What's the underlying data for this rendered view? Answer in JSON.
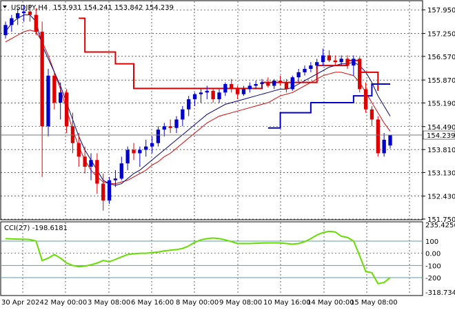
{
  "chart_data": {
    "type": "candlestick",
    "symbol_label": "USDJPY,H4",
    "ohlc_label": "153.931 154.241 153.842 154.239",
    "current_price_label": "154.239",
    "price_axis_ticks": [
      "157.950",
      "157.250",
      "156.570",
      "155.870",
      "155.190",
      "154.490",
      "153.810",
      "153.130",
      "152.430",
      "151.750"
    ],
    "price_range": [
      151.75,
      158.2
    ],
    "time_labels": [
      "30 Apr 2024",
      "2 May 00:00",
      "3 May 08:00",
      "6 May 16:00",
      "8 May 00:00",
      "9 May 08:00",
      "10 May 16:00",
      "14 May 00:00",
      "15 May 08:00"
    ],
    "colors": {
      "bull": "#0000cc",
      "bear": "#dd0000",
      "ma_fast": "#000080",
      "ma_slow": "#dd0000",
      "stop_line_red": "#dd0000",
      "stop_line_blue": "#0000cc",
      "cci": "#66dd00",
      "level_line": "#5f9ea0",
      "grid": "#000000"
    },
    "candles": [
      [
        157.2,
        157.6,
        157.1,
        157.5
      ],
      [
        157.5,
        157.8,
        157.3,
        157.7
      ],
      [
        157.7,
        158.0,
        157.5,
        157.85
      ],
      [
        157.85,
        158.1,
        157.6,
        157.9
      ],
      [
        157.9,
        158.1,
        157.6,
        157.8
      ],
      [
        157.8,
        158.0,
        157.2,
        157.3
      ],
      [
        157.3,
        157.6,
        153.0,
        154.5
      ],
      [
        154.5,
        156.2,
        154.2,
        156.0
      ],
      [
        156.0,
        156.1,
        155.0,
        155.2
      ],
      [
        155.2,
        155.8,
        154.7,
        155.5
      ],
      [
        155.5,
        155.6,
        154.3,
        154.5
      ],
      [
        154.5,
        154.9,
        153.7,
        154.0
      ],
      [
        154.0,
        154.3,
        153.3,
        153.6
      ],
      [
        153.6,
        153.9,
        153.1,
        153.3
      ],
      [
        153.3,
        153.7,
        152.9,
        153.5
      ],
      [
        153.5,
        153.7,
        152.5,
        152.8
      ],
      [
        152.8,
        153.1,
        152.0,
        152.3
      ],
      [
        152.3,
        153.0,
        152.2,
        152.9
      ],
      [
        152.9,
        153.2,
        152.7,
        152.95
      ],
      [
        152.95,
        153.6,
        152.9,
        153.4
      ],
      [
        153.4,
        153.9,
        153.2,
        153.8
      ],
      [
        153.8,
        154.0,
        153.5,
        153.7
      ],
      [
        153.7,
        153.9,
        153.3,
        153.8
      ],
      [
        153.8,
        154.1,
        153.6,
        153.9
      ],
      [
        153.9,
        154.2,
        153.7,
        154.0
      ],
      [
        154.0,
        154.5,
        153.9,
        154.4
      ],
      [
        154.4,
        154.6,
        154.2,
        154.5
      ],
      [
        154.5,
        154.7,
        154.3,
        154.45
      ],
      [
        154.45,
        154.8,
        154.3,
        154.7
      ],
      [
        154.7,
        155.1,
        154.5,
        155.0
      ],
      [
        155.0,
        155.4,
        154.8,
        155.3
      ],
      [
        155.3,
        155.5,
        155.1,
        155.45
      ],
      [
        155.45,
        155.6,
        155.2,
        155.5
      ],
      [
        155.5,
        155.7,
        155.3,
        155.55
      ],
      [
        155.55,
        155.6,
        155.2,
        155.3
      ],
      [
        155.3,
        155.6,
        155.2,
        155.5
      ],
      [
        155.5,
        155.8,
        155.4,
        155.75
      ],
      [
        155.75,
        155.9,
        155.5,
        155.6
      ],
      [
        155.6,
        155.7,
        155.3,
        155.45
      ],
      [
        155.45,
        155.7,
        155.4,
        155.6
      ],
      [
        155.6,
        155.8,
        155.5,
        155.7
      ],
      [
        155.7,
        155.85,
        155.6,
        155.75
      ],
      [
        155.75,
        155.9,
        155.6,
        155.8
      ],
      [
        155.8,
        155.95,
        155.65,
        155.7
      ],
      [
        155.7,
        155.9,
        155.6,
        155.85
      ],
      [
        155.85,
        156.0,
        155.7,
        155.8
      ],
      [
        155.8,
        155.9,
        155.5,
        155.6
      ],
      [
        155.6,
        156.0,
        155.55,
        155.95
      ],
      [
        155.95,
        156.2,
        155.8,
        156.1
      ],
      [
        156.1,
        156.3,
        156.0,
        156.2
      ],
      [
        156.2,
        156.4,
        156.1,
        156.3
      ],
      [
        156.3,
        156.5,
        156.2,
        156.4
      ],
      [
        156.4,
        156.8,
        156.3,
        156.6
      ],
      [
        156.6,
        156.75,
        156.4,
        156.45
      ],
      [
        156.45,
        156.6,
        156.3,
        156.4
      ],
      [
        156.4,
        156.6,
        156.3,
        156.5
      ],
      [
        156.5,
        156.6,
        156.2,
        156.3
      ],
      [
        156.3,
        156.6,
        156.0,
        156.5
      ],
      [
        156.5,
        156.55,
        155.5,
        155.6
      ],
      [
        155.6,
        155.8,
        154.9,
        155.0
      ],
      [
        155.0,
        155.1,
        154.5,
        154.7
      ],
      [
        154.7,
        154.8,
        153.6,
        153.7
      ],
      [
        153.7,
        154.3,
        153.6,
        154.1
      ],
      [
        153.93,
        154.24,
        153.84,
        154.24
      ]
    ],
    "ma_fast": [
      157.3,
      157.55,
      157.7,
      157.8,
      157.8,
      157.6,
      156.9,
      156.5,
      156.1,
      155.7,
      155.2,
      154.7,
      154.2,
      153.8,
      153.5,
      153.2,
      152.9,
      152.8,
      152.75,
      152.8,
      152.95,
      153.1,
      153.2,
      153.35,
      153.5,
      153.65,
      153.8,
      153.95,
      154.1,
      154.25,
      154.4,
      154.55,
      154.7,
      154.85,
      154.95,
      155.05,
      155.15,
      155.2,
      155.25,
      155.3,
      155.35,
      155.4,
      155.45,
      155.5,
      155.55,
      155.6,
      155.6,
      155.65,
      155.75,
      155.85,
      155.95,
      156.05,
      156.15,
      156.25,
      156.3,
      156.35,
      156.35,
      156.4,
      156.3,
      156.1,
      155.8,
      155.4,
      155.1,
      154.8
    ],
    "ma_slow": [
      157.0,
      157.1,
      157.2,
      157.3,
      157.35,
      157.3,
      157.0,
      156.6,
      156.1,
      155.6,
      155.0,
      154.4,
      153.9,
      153.5,
      153.2,
      153.0,
      152.85,
      152.8,
      152.8,
      152.85,
      152.9,
      153.0,
      153.1,
      153.2,
      153.35,
      153.45,
      153.6,
      153.7,
      153.85,
      154.0,
      154.15,
      154.3,
      154.45,
      154.6,
      154.7,
      154.8,
      154.85,
      154.9,
      154.95,
      155.0,
      155.05,
      155.1,
      155.15,
      155.2,
      155.3,
      155.4,
      155.45,
      155.5,
      155.6,
      155.7,
      155.8,
      155.9,
      156.0,
      156.05,
      156.1,
      156.1,
      156.05,
      156.0,
      155.8,
      155.5,
      155.2,
      154.9,
      154.6,
      154.35
    ],
    "stop_red_points": [
      [
        12,
        157.7
      ],
      [
        13,
        156.7
      ],
      [
        18,
        156.35
      ],
      [
        21,
        155.62
      ],
      [
        34,
        155.62
      ],
      [
        42,
        155.8
      ],
      [
        51,
        156.3
      ],
      [
        56,
        156.45
      ],
      [
        58,
        156.1
      ],
      [
        61,
        155.55
      ]
    ],
    "stop_blue_points": [
      [
        43,
        154.45
      ],
      [
        45,
        154.9
      ],
      [
        50,
        155.2
      ],
      [
        55,
        155.2
      ],
      [
        57,
        155.4
      ],
      [
        60,
        155.75
      ],
      [
        63,
        155.75
      ]
    ],
    "cci_label": "CCI(27) -198.6181",
    "cci_levels": [
      "235.4256",
      "100",
      "0.00",
      "-100",
      "-200",
      "-318.7341"
    ],
    "cci_range": [
      -318.7341,
      235.4256
    ],
    "cci_values": [
      120,
      118,
      116,
      115,
      112,
      100,
      -60,
      -40,
      -10,
      -40,
      -80,
      -100,
      -110,
      -105,
      -95,
      -80,
      -60,
      -70,
      -50,
      -30,
      -10,
      -5,
      0,
      0,
      5,
      10,
      20,
      25,
      30,
      40,
      60,
      90,
      110,
      120,
      125,
      120,
      110,
      95,
      80,
      80,
      80,
      82,
      84,
      85,
      85,
      85,
      80,
      75,
      80,
      95,
      120,
      150,
      170,
      180,
      175,
      140,
      130,
      100,
      -20,
      -150,
      -160,
      -250,
      -240,
      -198.6181
    ],
    "cci_ticks_shown": [
      "100",
      "0.00",
      "-100",
      "-200"
    ]
  }
}
